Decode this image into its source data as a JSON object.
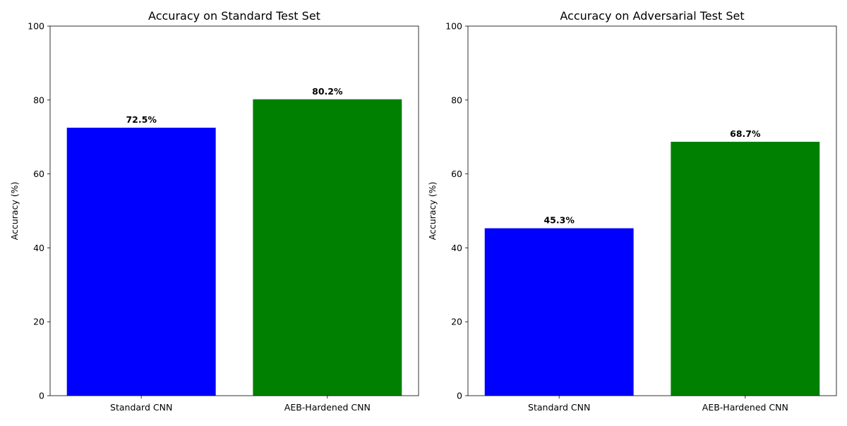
{
  "chart_data": [
    {
      "type": "bar",
      "title": "Accuracy on Standard Test Set",
      "xlabel": "",
      "ylabel": "Accuracy (%)",
      "ylim": [
        0,
        100
      ],
      "yticks": [
        0,
        20,
        40,
        60,
        80,
        100
      ],
      "categories": [
        "Standard CNN",
        "AEB-Hardened CNN"
      ],
      "values": [
        72.5,
        80.2
      ],
      "value_labels": [
        "72.5%",
        "80.2%"
      ],
      "colors": [
        "#0000ff",
        "#008000"
      ],
      "grid": false,
      "legend": "none"
    },
    {
      "type": "bar",
      "title": "Accuracy on Adversarial Test Set",
      "xlabel": "",
      "ylabel": "Accuracy (%)",
      "ylim": [
        0,
        100
      ],
      "yticks": [
        0,
        20,
        40,
        60,
        80,
        100
      ],
      "categories": [
        "Standard CNN",
        "AEB-Hardened CNN"
      ],
      "values": [
        45.3,
        68.7
      ],
      "value_labels": [
        "45.3%",
        "68.7%"
      ],
      "colors": [
        "#0000ff",
        "#008000"
      ],
      "grid": false,
      "legend": "none"
    }
  ]
}
